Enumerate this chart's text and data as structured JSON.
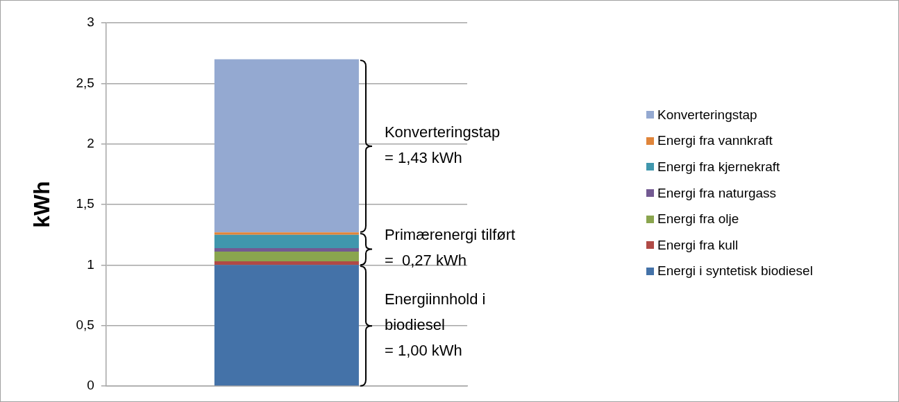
{
  "chart_data": {
    "type": "bar",
    "stacked": true,
    "ylabel": "kWh",
    "categories": [
      null
    ],
    "series": [
      {
        "name": "Energi i syntetisk biodiesel",
        "color": "#4472a8",
        "values": [
          1.0
        ]
      },
      {
        "name": "Energi fra kull",
        "color": "#b04a46",
        "values": [
          0.03
        ]
      },
      {
        "name": "Energi fra olje",
        "color": "#8aa54e",
        "values": [
          0.08
        ]
      },
      {
        "name": "Energi fra naturgass",
        "color": "#735a92",
        "values": [
          0.03
        ]
      },
      {
        "name": "Energi fra kjernekraft",
        "color": "#4097ad",
        "values": [
          0.11
        ]
      },
      {
        "name": "Energi fra vannkraft",
        "color": "#e0853a",
        "values": [
          0.02
        ]
      },
      {
        "name": "Konverteringstap",
        "color": "#94a9d1",
        "values": [
          1.43
        ]
      }
    ],
    "ylim": [
      0,
      3
    ],
    "yticks": [
      0,
      {
        "value": 0.5,
        "label": "0,5"
      },
      1,
      {
        "value": 1.5,
        "label": "1,5"
      },
      2,
      {
        "value": 2.5,
        "label": "2,5"
      },
      3
    ],
    "grid": "y",
    "legend": "right",
    "annotations": [
      "Konverteringstap\n= 1,43 kWh",
      "Primærenergi tilført\n=  0,27 kWh",
      "Energiinnhold i\nbiodiesel\n= 1,00 kWh"
    ]
  }
}
